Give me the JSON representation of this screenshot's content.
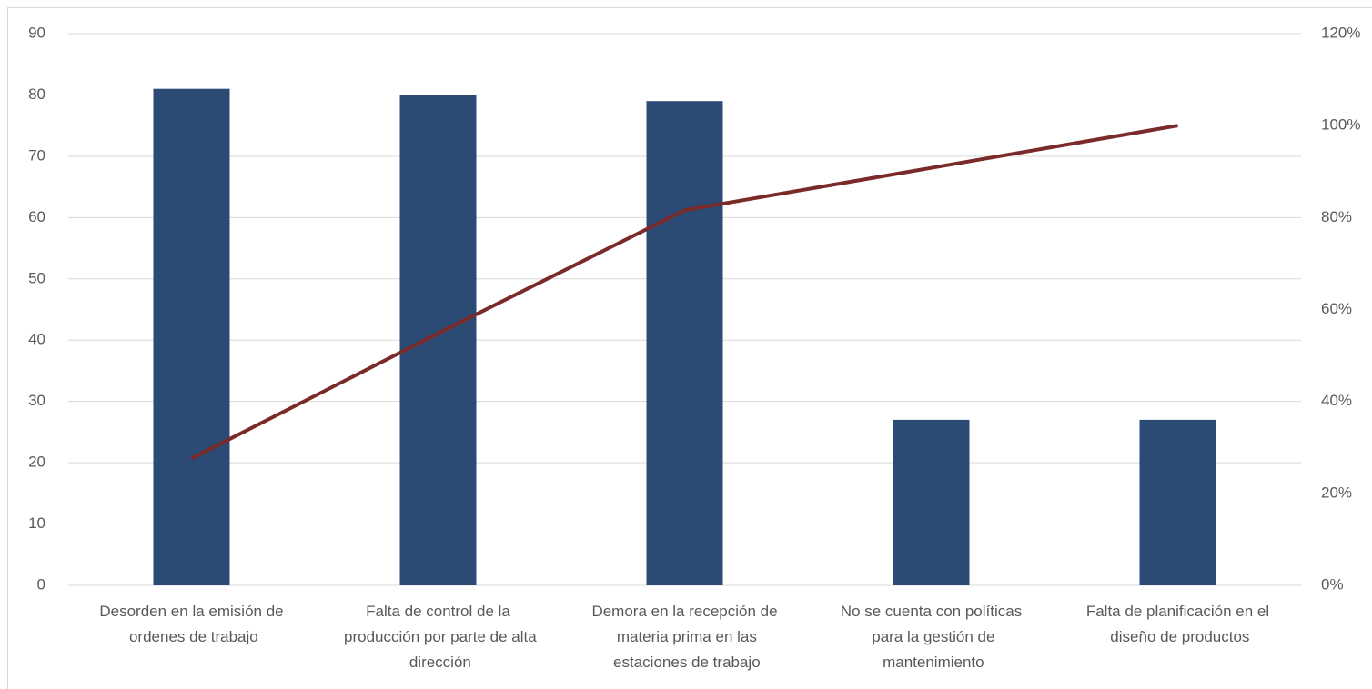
{
  "chart_data": {
    "type": "pareto",
    "categories": [
      "Desorden en la emisión de ordenes de trabajo",
      "Falta de control de la producción por parte de alta dirección",
      "Demora en la recepción de materia prima en las estaciones de trabajo",
      "No se cuenta con políticas para la gestión de mantenimiento",
      "Falta de planificación en el diseño de productos"
    ],
    "series": [
      {
        "type": "bar",
        "color": "#2c4b74",
        "values": [
          81,
          80,
          79,
          27,
          27
        ]
      },
      {
        "type": "line",
        "axis": "y2",
        "color": "#7b2a2a",
        "values": [
          27.6,
          54.8,
          81.6,
          90.8,
          100
        ]
      }
    ],
    "ylim": [
      0,
      90
    ],
    "yticks": [
      0,
      10,
      20,
      30,
      40,
      50,
      60,
      70,
      80,
      90
    ],
    "y2lim": [
      0,
      120
    ],
    "y2ticks": [
      {
        "value": 0,
        "label": "0%"
      },
      {
        "value": 20,
        "label": "20%"
      },
      {
        "value": 40,
        "label": "40%"
      },
      {
        "value": 60,
        "label": "60%"
      },
      {
        "value": 80,
        "label": "80%"
      },
      {
        "value": 100,
        "label": "100%"
      },
      {
        "value": 120,
        "label": "120%"
      }
    ],
    "grid": true
  }
}
